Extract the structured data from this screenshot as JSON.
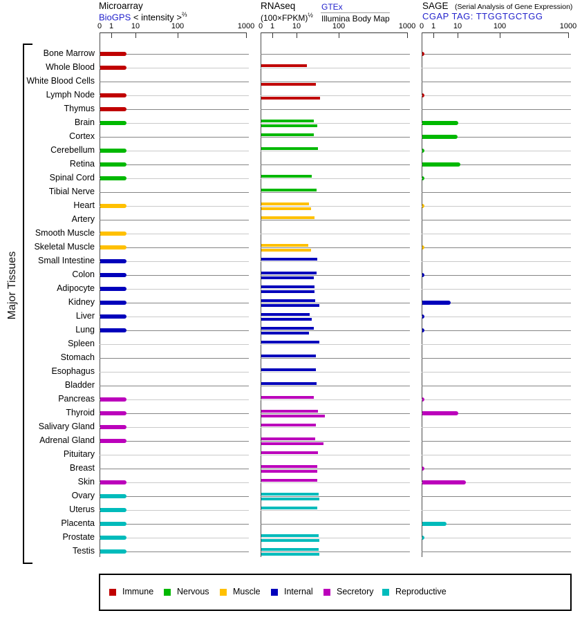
{
  "side_label": "Major Tissues",
  "panels": [
    {
      "id": "microarray",
      "title": "Microarray",
      "link": "BioGPS",
      "subtitle": "< intensity >",
      "subtitle_sup": "⅔",
      "ticks": [
        "0",
        "1",
        "10",
        "100",
        "1000"
      ]
    },
    {
      "id": "rnaseq",
      "title": "RNAseq",
      "subtitle": "(100×FPKM)",
      "subtitle_sup": "½",
      "source_link": "GTEx",
      "source2": "Illumina Body Map",
      "ticks": [
        "0",
        "1",
        "10",
        "100",
        "1000"
      ]
    },
    {
      "id": "sage",
      "title": "SAGE",
      "title_note": "(Serial Analysis of Gene Expression)",
      "link": "CGAP TAG: TTGGTGCTGG",
      "ticks": [
        "0",
        "1",
        "10",
        "100",
        "1000"
      ]
    }
  ],
  "group_colors": {
    "Immune": "#c00000",
    "Nervous": "#00b800",
    "Muscle": "#ffc000",
    "Internal": "#0000bb",
    "Secretory": "#bb00bb",
    "Reproductive": "#00bbbb"
  },
  "legend": [
    {
      "label": "Immune",
      "color": "#c00000"
    },
    {
      "label": "Nervous",
      "color": "#00b800"
    },
    {
      "label": "Muscle",
      "color": "#ffc000"
    },
    {
      "label": "Internal",
      "color": "#0000bb"
    },
    {
      "label": "Secretory",
      "color": "#bb00bb"
    },
    {
      "label": "Reproductive",
      "color": "#00bbbb"
    }
  ],
  "chart_data": {
    "type": "bar",
    "orientation": "horizontal",
    "value_scale": {
      "ticks": [
        0,
        1,
        10,
        100,
        1000
      ],
      "note": "nonlinear compressed log-like scale, shared by all three panels"
    },
    "panel_series_map": {
      "Microarray": [
        "Microarray BioGPS"
      ],
      "RNAseq": [
        "RNAseq GTEx",
        "RNAseq Illumina Body Map"
      ],
      "SAGE": [
        "SAGE CGAP TTGGTGCTGG"
      ]
    },
    "categories": [
      "Bone Marrow",
      "Whole Blood",
      "White Blood Cells",
      "Lymph Node",
      "Thymus",
      "Brain",
      "Cortex",
      "Cerebellum",
      "Retina",
      "Spinal Cord",
      "Tibial Nerve",
      "Heart",
      "Artery",
      "Smooth Muscle",
      "Skeletal Muscle",
      "Small Intestine",
      "Colon",
      "Adipocyte",
      "Kidney",
      "Liver",
      "Lung",
      "Spleen",
      "Stomach",
      "Esophagus",
      "Bladder",
      "Pancreas",
      "Thyroid",
      "Salivary Gland",
      "Adrenal Gland",
      "Pituitary",
      "Breast",
      "Skin",
      "Ovary",
      "Uterus",
      "Placenta",
      "Prostate",
      "Testis"
    ],
    "groups": [
      "Immune",
      "Immune",
      "Immune",
      "Immune",
      "Immune",
      "Nervous",
      "Nervous",
      "Nervous",
      "Nervous",
      "Nervous",
      "Nervous",
      "Muscle",
      "Muscle",
      "Muscle",
      "Muscle",
      "Internal",
      "Internal",
      "Internal",
      "Internal",
      "Internal",
      "Internal",
      "Internal",
      "Internal",
      "Internal",
      "Internal",
      "Secretory",
      "Secretory",
      "Secretory",
      "Secretory",
      "Secretory",
      "Secretory",
      "Secretory",
      "Reproductive",
      "Reproductive",
      "Reproductive",
      "Reproductive",
      "Reproductive"
    ],
    "series": [
      {
        "name": "Microarray BioGPS",
        "values": [
          4,
          4,
          null,
          4,
          4,
          4,
          null,
          4,
          4,
          4,
          null,
          4,
          null,
          4,
          4,
          4,
          4,
          4,
          4,
          4,
          4,
          null,
          null,
          null,
          null,
          4,
          4,
          4,
          4,
          null,
          null,
          4,
          4,
          4,
          4,
          4,
          4
        ]
      },
      {
        "name": "RNAseq GTEx",
        "values": [
          null,
          17,
          null,
          null,
          null,
          25,
          25,
          31,
          null,
          22,
          29,
          19,
          26,
          null,
          18,
          30,
          29,
          26,
          27,
          20,
          25,
          33,
          28,
          28,
          29,
          25,
          31,
          28,
          27,
          31,
          30,
          30,
          32,
          30,
          null,
          32,
          32
        ]
      },
      {
        "name": "RNAseq Illumina Body Map",
        "values": [
          null,
          null,
          28,
          35,
          null,
          30,
          null,
          null,
          null,
          null,
          null,
          21,
          null,
          null,
          21,
          null,
          25,
          26,
          33,
          22,
          19,
          null,
          null,
          null,
          null,
          null,
          45,
          null,
          42,
          null,
          30,
          null,
          33,
          null,
          null,
          34,
          33
        ]
      },
      {
        "name": "SAGE CGAP TTGGTGCTGG",
        "values": [
          0.15,
          null,
          null,
          0.15,
          null,
          10,
          9.5,
          0.15,
          11,
          0.15,
          null,
          0.15,
          null,
          null,
          0.15,
          null,
          0.15,
          null,
          5,
          0.15,
          0.15,
          null,
          null,
          null,
          null,
          0.15,
          10,
          null,
          null,
          null,
          0.15,
          15,
          null,
          null,
          3.2,
          0.15,
          null
        ]
      }
    ]
  }
}
